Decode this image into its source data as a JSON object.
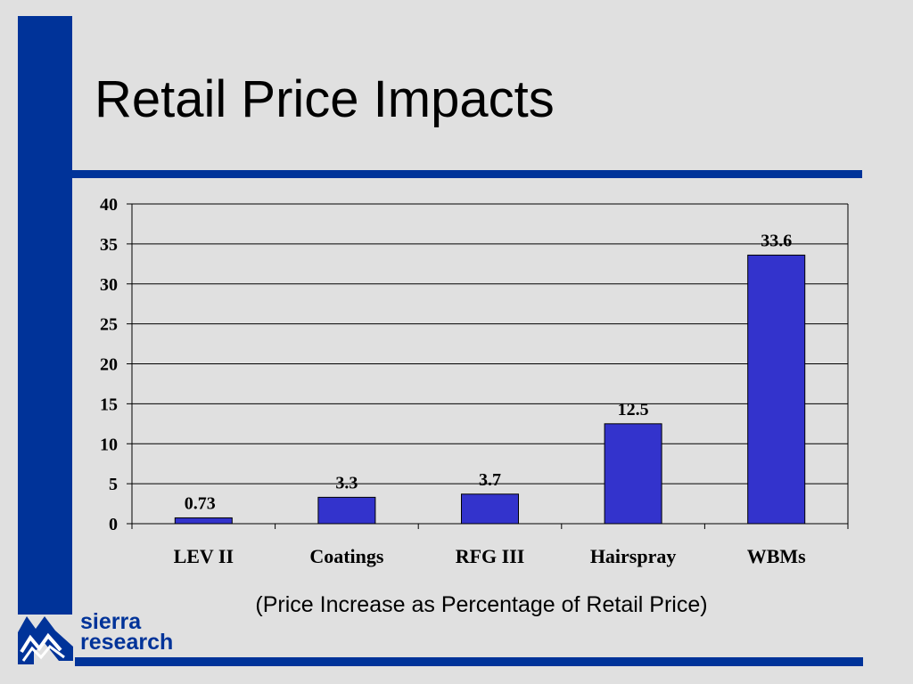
{
  "slide": {
    "title": "Retail Price Impacts",
    "caption": "(Price Increase as Percentage of Retail Price)"
  },
  "logo": {
    "line1": "sierra",
    "line2": "research"
  },
  "colors": {
    "brand_blue": "#003399",
    "bar_fill": "#3333cc",
    "background": "#e0e0e0"
  },
  "chart_data": {
    "type": "bar",
    "categories": [
      "LEV II",
      "Coatings",
      "RFG III",
      "Hairspray",
      "WBMs"
    ],
    "values": [
      0.73,
      3.3,
      3.7,
      12.5,
      33.6
    ],
    "value_labels": [
      "0.73",
      "3.3",
      "3.7",
      "12.5",
      "33.6"
    ],
    "y_ticks": [
      0,
      5,
      10,
      15,
      20,
      25,
      30,
      35,
      40
    ],
    "ylim": [
      0,
      40
    ],
    "grid": true,
    "legend": "none"
  }
}
